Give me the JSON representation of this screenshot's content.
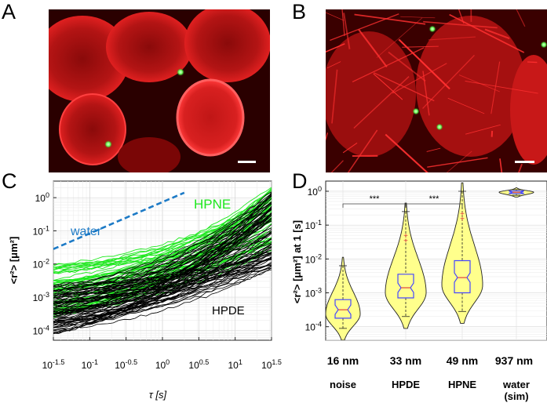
{
  "panels": {
    "a": "A",
    "b": "B",
    "c": "C",
    "d": "D"
  },
  "colors": {
    "cell_red": "#d01818",
    "bead_green": "#6cff5a",
    "hpne": "#1ee81e",
    "hpde": "#000000",
    "water": "#1c7ac6",
    "violin_fill": "#ffff8c",
    "box": "#4646ff",
    "outlier": "#e04040"
  },
  "chart_data": [
    {
      "type": "line",
      "title": "",
      "xlabel": "τ [s]",
      "ylabel": "<r²> [μm²]",
      "xscale": "log",
      "yscale": "log",
      "xlim_log10": [
        -1.5,
        1.5
      ],
      "ylim_log10": [
        -4.3,
        0.5
      ],
      "x_tick_labels": [
        "10^-1.5",
        "10^-1",
        "10^-0.5",
        "10^0",
        "10^0.5",
        "10^1",
        "10^1.5"
      ],
      "y_tick_labels": [
        "10^-4",
        "10^-3",
        "10^-2",
        "10^-1",
        "10^0"
      ],
      "grid": true,
      "annotations": [
        "HPNE",
        "water",
        "HPDE"
      ],
      "series": [
        {
          "name": "water",
          "style": "dashed",
          "x_log10": [
            -1.5,
            0.3
          ],
          "y_log10": [
            -1.55,
            0.15
          ]
        },
        {
          "name": "HPNE",
          "count": 60,
          "x_log10_range": [
            -1.5,
            1.5
          ],
          "y_log10_start_range": [
            -3.6,
            -2.0
          ],
          "y_log10_end_range": [
            -1.6,
            0.35
          ]
        },
        {
          "name": "HPDE",
          "count": 80,
          "x_log10_range": [
            -1.5,
            1.5
          ],
          "y_log10_start_range": [
            -4.1,
            -2.6
          ],
          "y_log10_end_range": [
            -2.2,
            0.2
          ]
        }
      ]
    },
    {
      "type": "violin",
      "ylabel": "<r²> [μm²] at 1 [s]",
      "yscale": "log",
      "ylim_log10": [
        -4.4,
        0.3
      ],
      "y_tick_labels": [
        "10^-4",
        "10^-3",
        "10^-2",
        "10^-1",
        "10^0"
      ],
      "categories": [
        "noise",
        "HPDE",
        "HPNE",
        "water\n(sim)"
      ],
      "size_labels": [
        "16 nm",
        "33 nm",
        "49 nm",
        "937 nm"
      ],
      "significance": [
        {
          "pair": [
            "HPDE",
            "noise"
          ],
          "label": "***"
        },
        {
          "pair": [
            "HPDE",
            "HPNE"
          ],
          "label": "***"
        }
      ],
      "distributions": [
        {
          "name": "noise",
          "min_log10": -4.05,
          "q1_log10": -3.75,
          "median_log10": -3.5,
          "q3_log10": -3.2,
          "max_log10": -2.2
        },
        {
          "name": "HPDE",
          "min_log10": -3.7,
          "q1_log10": -3.15,
          "median_log10": -2.85,
          "q3_log10": -2.45,
          "max_log10": -0.6
        },
        {
          "name": "HPNE",
          "min_log10": -3.55,
          "q1_log10": -3.0,
          "median_log10": -2.55,
          "q3_log10": -2.05,
          "max_log10": 0.0
        },
        {
          "name": "water (sim)",
          "min_log10": -0.12,
          "q1_log10": -0.07,
          "median_log10": -0.03,
          "q3_log10": 0.01,
          "max_log10": 0.05
        }
      ]
    }
  ]
}
